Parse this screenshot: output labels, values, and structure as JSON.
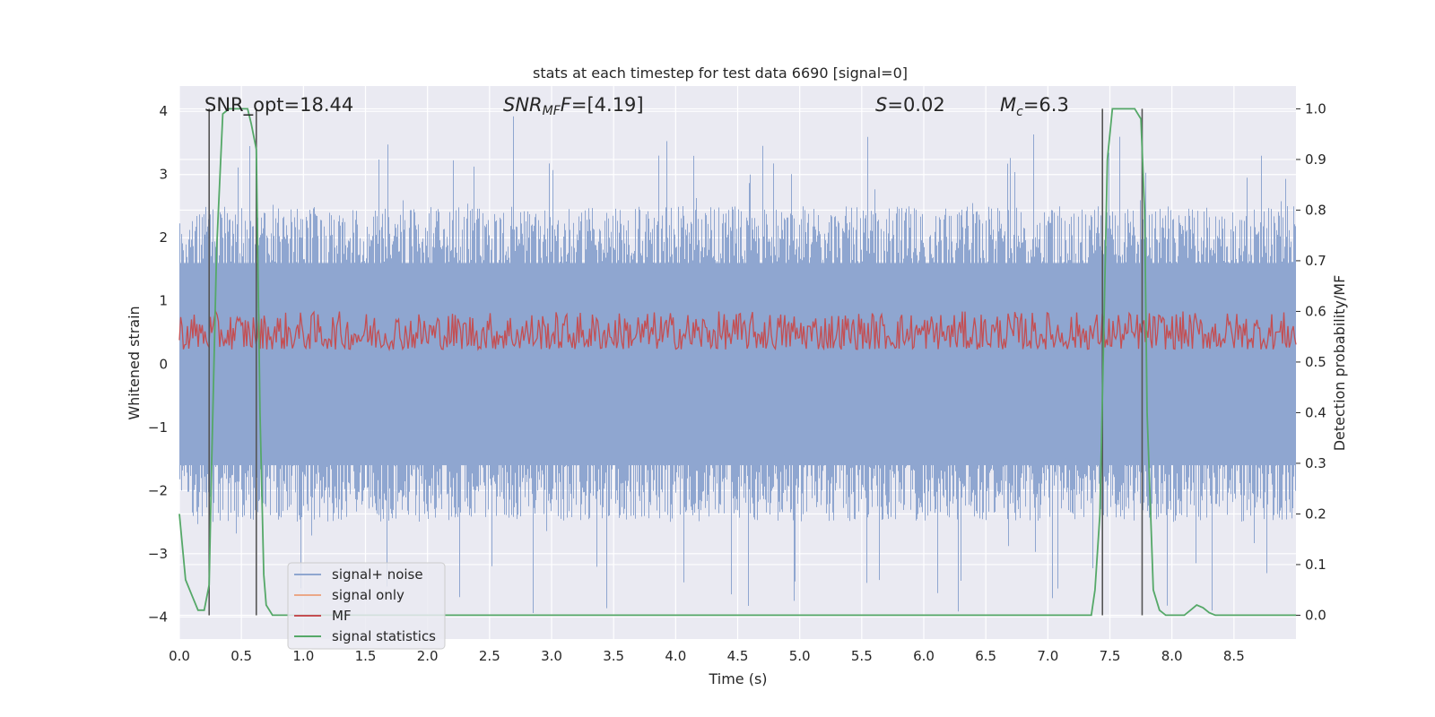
{
  "chart_data": {
    "type": "line",
    "title": "stats at each timestep for test data 6690 [signal=0]",
    "xlabel": "Time (s)",
    "ylabel_left": "Whitened strain",
    "ylabel_right": "Detection probability/MF",
    "xlim": [
      0.0,
      9.0
    ],
    "ylim_left": [
      -4.35,
      4.4
    ],
    "ylim_right": [
      -0.047,
      1.045
    ],
    "x_ticks": [
      "0.0",
      "0.5",
      "1.0",
      "1.5",
      "2.0",
      "2.5",
      "3.0",
      "3.5",
      "4.0",
      "4.5",
      "5.0",
      "5.5",
      "6.0",
      "6.5",
      "7.0",
      "7.5",
      "8.0",
      "8.5"
    ],
    "y_left_ticks": [
      "−4",
      "−3",
      "−2",
      "−1",
      "0",
      "1",
      "2",
      "3",
      "4"
    ],
    "y_right_ticks": [
      "0.0",
      "0.1",
      "0.2",
      "0.3",
      "0.4",
      "0.5",
      "0.6",
      "0.7",
      "0.8",
      "0.9",
      "1.0"
    ],
    "annotations": {
      "snr_opt": "SNR_opt=18.44",
      "snr_mf_sym": "SNR",
      "snr_mf_sub": "MF",
      "snr_mf_val": "=[4.19]",
      "s_sym": "S",
      "s_val": "=0.02",
      "mc_sym": "M",
      "mc_sub": "c",
      "mc_val": "=6.3"
    },
    "legend": {
      "location": "lower left",
      "entries": [
        "signal+ noise",
        "signal only",
        "MF",
        "signal statistics"
      ]
    },
    "series": [
      {
        "name": "signal+ noise",
        "axis": "left",
        "color": "#8fa6d0",
        "envelope": {
          "typical_abs_max": 2.0,
          "peak_abs": 4.0
        }
      },
      {
        "name": "signal only",
        "axis": "left",
        "color": "#eba888",
        "values": []
      },
      {
        "name": "MF",
        "axis": "right",
        "color": "#c44e52",
        "range": [
          0.5,
          0.6
        ]
      },
      {
        "name": "signal statistics",
        "axis": "right",
        "color": "#55a868",
        "x": [
          0.0,
          0.05,
          0.1,
          0.15,
          0.2,
          0.24,
          0.26,
          0.3,
          0.35,
          0.4,
          0.45,
          0.5,
          0.55,
          0.58,
          0.62,
          0.65,
          0.68,
          0.7,
          0.75,
          0.8,
          1.0,
          2.0,
          3.0,
          4.0,
          5.0,
          6.0,
          7.0,
          7.35,
          7.38,
          7.42,
          7.45,
          7.48,
          7.52,
          7.6,
          7.7,
          7.75,
          7.78,
          7.8,
          7.85,
          7.9,
          7.95,
          8.0,
          8.1,
          8.15,
          8.2,
          8.25,
          8.3,
          8.35,
          8.4,
          8.5,
          8.7,
          9.0
        ],
        "values": [
          0.2,
          0.07,
          0.04,
          0.01,
          0.01,
          0.06,
          0.3,
          0.72,
          0.99,
          1.0,
          1.0,
          1.0,
          1.0,
          0.97,
          0.92,
          0.4,
          0.08,
          0.02,
          0.0,
          0.0,
          0.0,
          0.0,
          0.0,
          0.0,
          0.0,
          0.0,
          0.0,
          0.0,
          0.05,
          0.2,
          0.55,
          0.9,
          1.0,
          1.0,
          1.0,
          0.98,
          0.8,
          0.4,
          0.05,
          0.01,
          0.0,
          0.0,
          0.0,
          0.01,
          0.02,
          0.015,
          0.005,
          0.0,
          0.0,
          0.0,
          0.0,
          0.0
        ]
      },
      {
        "name": "boundaries",
        "axis": "right",
        "color": "#555555",
        "x": [
          0.24,
          0.62,
          7.44,
          7.76
        ]
      }
    ]
  }
}
